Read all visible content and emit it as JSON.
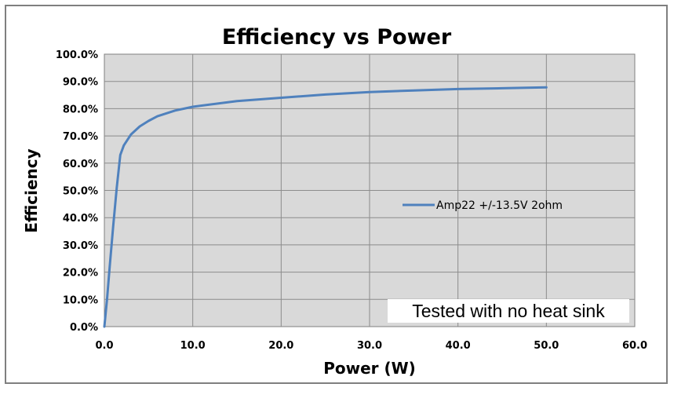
{
  "chart_data": {
    "type": "line",
    "title": "Efficiency vs Power",
    "xlabel": "Power (W)",
    "ylabel": "Efficiency",
    "xlim": [
      0,
      60
    ],
    "ylim": [
      0,
      100
    ],
    "x_ticks": [
      "0.0",
      "10.0",
      "20.0",
      "30.0",
      "40.0",
      "50.0",
      "60.0"
    ],
    "y_ticks": [
      "0.0%",
      "10.0%",
      "20.0%",
      "30.0%",
      "40.0%",
      "50.0%",
      "60.0%",
      "70.0%",
      "80.0%",
      "90.0%",
      "100.0%"
    ],
    "grid": true,
    "legend_position": "right-center",
    "series": [
      {
        "name": "Amp22 +/-13.5V 2ohm",
        "color": "#4f81bd",
        "x": [
          0,
          0.3,
          0.6,
          1.0,
          1.4,
          1.8,
          2.2,
          3.0,
          4.0,
          5.0,
          6.0,
          8.0,
          10.0,
          15.0,
          20.0,
          25.0,
          30.0,
          35.0,
          40.0,
          45.0,
          50.0
        ],
        "y": [
          0,
          10,
          22,
          37,
          51,
          63,
          66.5,
          70.5,
          73.5,
          75.5,
          77.2,
          79.3,
          80.7,
          82.8,
          84.0,
          85.2,
          86.1,
          86.7,
          87.2,
          87.5,
          87.8
        ]
      }
    ],
    "annotation": "Tested with no heat sink"
  }
}
